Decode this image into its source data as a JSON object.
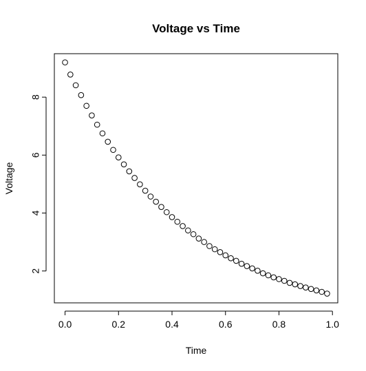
{
  "chart_data": {
    "type": "scatter",
    "title": "Voltage vs Time",
    "xlabel": "Time",
    "ylabel": "Voltage",
    "xlim": [
      -0.04,
      1.02
    ],
    "ylim": [
      0.9,
      9.5
    ],
    "xticks": [
      0.0,
      0.2,
      0.4,
      0.6,
      0.8,
      1.0
    ],
    "xtick_labels": [
      "0.0",
      "0.2",
      "0.4",
      "0.6",
      "0.8",
      "1.0"
    ],
    "yticks": [
      2,
      4,
      6,
      8
    ],
    "ytick_labels": [
      "2",
      "4",
      "6",
      "8"
    ],
    "grid": false,
    "marker": "open-circle",
    "color": "#000000",
    "x": [
      0.0,
      0.02,
      0.04,
      0.06,
      0.08,
      0.1,
      0.12,
      0.14,
      0.16,
      0.18,
      0.2,
      0.22,
      0.24,
      0.26,
      0.28,
      0.3,
      0.32,
      0.34,
      0.36,
      0.38,
      0.4,
      0.42,
      0.44,
      0.46,
      0.48,
      0.5,
      0.52,
      0.54,
      0.56,
      0.58,
      0.6,
      0.62,
      0.64,
      0.66,
      0.68,
      0.7,
      0.72,
      0.74,
      0.76,
      0.78,
      0.8,
      0.82,
      0.84,
      0.86,
      0.88,
      0.9,
      0.92,
      0.94,
      0.96,
      0.98
    ],
    "y": [
      9.2,
      8.78,
      8.41,
      8.07,
      7.7,
      7.37,
      7.05,
      6.75,
      6.46,
      6.18,
      5.92,
      5.68,
      5.44,
      5.21,
      4.99,
      4.77,
      4.57,
      4.39,
      4.21,
      4.03,
      3.86,
      3.7,
      3.55,
      3.4,
      3.27,
      3.12,
      3.0,
      2.86,
      2.75,
      2.65,
      2.54,
      2.44,
      2.35,
      2.25,
      2.17,
      2.09,
      2.01,
      1.92,
      1.85,
      1.78,
      1.72,
      1.66,
      1.59,
      1.54,
      1.48,
      1.43,
      1.38,
      1.33,
      1.28,
      1.22
    ]
  }
}
